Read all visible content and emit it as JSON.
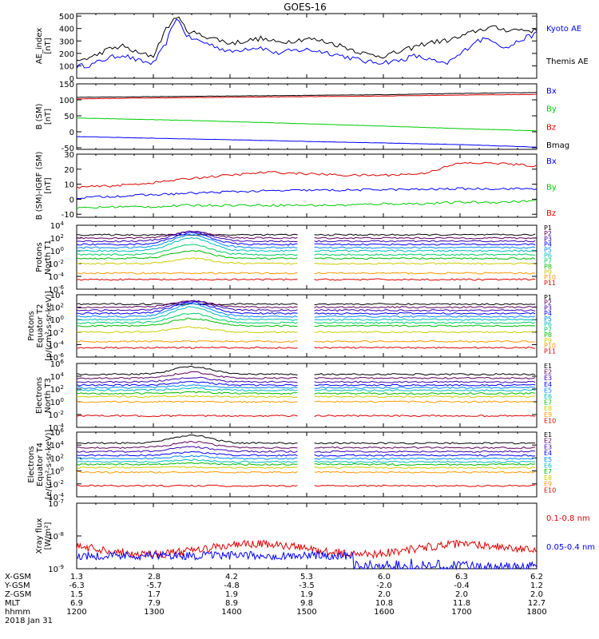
{
  "title": "GOES-16",
  "chart_data": [
    {
      "type": "line",
      "panel": "ae_index",
      "ylabel": [
        "AE_index",
        "[nT]"
      ],
      "yscale": "linear",
      "ylim": [
        0,
        520
      ],
      "yticks": [
        0,
        100,
        200,
        300,
        400,
        500
      ],
      "ytick_labels": [
        "0",
        "100",
        "200",
        "300",
        "400",
        "500"
      ],
      "x_hours": [
        12.0,
        12.2,
        12.4,
        12.6,
        12.8,
        13.0,
        13.15,
        13.3,
        13.45,
        13.6,
        13.8,
        14.0,
        14.2,
        14.4,
        14.6,
        14.8,
        15.0,
        15.2,
        15.4,
        15.6,
        15.8,
        16.0,
        16.2,
        16.4,
        16.6,
        16.8,
        17.0,
        17.2,
        17.4,
        17.6,
        17.8,
        18.0
      ],
      "series": [
        {
          "name": "Kyoto AE",
          "color": "#0000ff",
          "values": [
            95,
            110,
            160,
            190,
            140,
            120,
            260,
            490,
            330,
            300,
            260,
            210,
            240,
            250,
            200,
            220,
            230,
            215,
            190,
            160,
            130,
            130,
            140,
            180,
            150,
            110,
            190,
            300,
            320,
            240,
            310,
            360
          ]
        },
        {
          "name": "Themis AE",
          "color": "#000000",
          "values": [
            140,
            170,
            230,
            260,
            200,
            180,
            380,
            500,
            380,
            350,
            320,
            280,
            300,
            320,
            290,
            300,
            320,
            300,
            270,
            230,
            190,
            180,
            210,
            250,
            290,
            300,
            330,
            380,
            410,
            390,
            390,
            380
          ]
        }
      ]
    },
    {
      "type": "line",
      "panel": "b_sm",
      "ylabel": [
        "B (SM)",
        "[nT]"
      ],
      "yscale": "linear",
      "ylim": [
        -55,
        150
      ],
      "yticks": [
        -50,
        0,
        50,
        100,
        150
      ],
      "ytick_labels": [
        "-50",
        "0",
        "50",
        "100",
        "150"
      ],
      "x_hours": [
        12.0,
        13.0,
        14.0,
        15.0,
        16.0,
        17.0,
        18.0
      ],
      "series": [
        {
          "name": "Bx",
          "color": "#0000ff",
          "values": [
            -15,
            -20,
            -25,
            -30,
            -35,
            -40,
            -48
          ]
        },
        {
          "name": "By",
          "color": "#00cc00",
          "values": [
            43,
            38,
            32,
            25,
            18,
            10,
            3
          ]
        },
        {
          "name": "Bz",
          "color": "#dd0000",
          "values": [
            103,
            106,
            108,
            110,
            112,
            115,
            117
          ]
        },
        {
          "name": "Bmag",
          "color": "#000000",
          "values": [
            108,
            110,
            112,
            114,
            116,
            120,
            123
          ]
        }
      ]
    },
    {
      "type": "line",
      "panel": "b_minus_igrf",
      "ylabel": [
        "B (SM)-IGRF (SM)",
        "[nT]"
      ],
      "yscale": "linear",
      "ylim": [
        -12,
        30
      ],
      "yticks": [
        -10,
        0,
        10,
        20,
        30
      ],
      "ytick_labels": [
        "-10",
        "0",
        "10",
        "20",
        "30"
      ],
      "x_hours": [
        12.0,
        12.5,
        13.0,
        13.5,
        14.0,
        14.5,
        15.0,
        15.5,
        16.0,
        16.5,
        17.0,
        17.5,
        18.0
      ],
      "series": [
        {
          "name": "Bx",
          "color": "#0000ff",
          "values": [
            1,
            2,
            3,
            4,
            5,
            5.5,
            6,
            6,
            6.5,
            6.5,
            7,
            7,
            7
          ]
        },
        {
          "name": "By",
          "color": "#00cc00",
          "values": [
            -6,
            -5,
            -5,
            -4,
            -4,
            -4,
            -4,
            -4,
            -3,
            -3,
            -2,
            -2,
            -1
          ]
        },
        {
          "name": "Bz",
          "color": "#dd0000",
          "values": [
            8,
            9,
            11,
            14,
            16,
            18,
            17,
            16,
            16,
            17,
            24,
            24,
            22
          ]
        }
      ]
    },
    {
      "type": "line",
      "panel": "protons_t1",
      "ylabel": [
        "Protons",
        "North T1"
      ],
      "yscale": "log",
      "ylim_exp": [
        -6,
        4
      ],
      "ytick_exps": [
        -6,
        -4,
        -2,
        0,
        2,
        4
      ],
      "gap_hours": [
        14.9,
        15.1
      ],
      "channels": [
        "P1",
        "P2",
        "P3",
        "P4",
        "P5",
        "P6",
        "P7",
        "P8",
        "P9",
        "P10",
        "P11"
      ],
      "channel_colors": [
        "#000000",
        "#5a005a",
        "#3a00b0",
        "#0000ff",
        "#0088ff",
        "#00bbbb",
        "#00cc66",
        "#00bb00",
        "#cccc00",
        "#ff9900",
        "#dd0000"
      ],
      "base_log10": [
        2.5,
        2,
        1.5,
        1,
        0.5,
        0,
        -0.6,
        -1.2,
        -2,
        -3.5,
        -4.5
      ],
      "event_boost": [
        0,
        1,
        1.5,
        1.8,
        2,
        2,
        1.5,
        1.2,
        0.8,
        0,
        0
      ]
    },
    {
      "type": "line",
      "panel": "protons_t2",
      "ylabel": [
        "Protons",
        "Equator T2",
        "[p/(cm²-s-sr-keV)]"
      ],
      "yscale": "log",
      "ylim_exp": [
        -6,
        4
      ],
      "ytick_exps": [
        -6,
        -4,
        -2,
        0,
        2,
        4
      ],
      "gap_hours": [
        14.9,
        15.1
      ],
      "channels": [
        "P1",
        "P2",
        "P3",
        "P4",
        "P5",
        "P6",
        "P7",
        "P8",
        "P9",
        "P10",
        "P11"
      ],
      "channel_colors": [
        "#000000",
        "#5a005a",
        "#3a00b0",
        "#0000ff",
        "#0088ff",
        "#00bbbb",
        "#00cc66",
        "#00bb00",
        "#cccc00",
        "#ff9900",
        "#dd0000"
      ],
      "base_log10": [
        2.5,
        2,
        1.5,
        1,
        0.5,
        0,
        -0.5,
        -1,
        -2,
        -3.5,
        -4.5
      ],
      "event_boost": [
        0,
        1,
        1.5,
        1.8,
        2,
        2,
        1.5,
        1.2,
        0.8,
        0,
        0
      ]
    },
    {
      "type": "line",
      "panel": "electrons_t3",
      "ylabel": [
        "Electrons",
        "North T3"
      ],
      "yscale": "log",
      "ylim_exp": [
        -4,
        6
      ],
      "ytick_exps": [
        -4,
        -2,
        0,
        2,
        4,
        6
      ],
      "gap_hours": [
        14.9,
        15.1
      ],
      "channels": [
        "E1",
        "E2",
        "E3",
        "E4",
        "E5",
        "E6",
        "E7",
        "E8",
        "E9",
        "E10"
      ],
      "channel_colors": [
        "#000000",
        "#5a005a",
        "#3a00b0",
        "#0000ff",
        "#0088ff",
        "#00bbbb",
        "#00bb00",
        "#cccc00",
        "#ff9900",
        "#dd0000"
      ],
      "base_log10": [
        4.3,
        3.7,
        3.1,
        2.6,
        2.2,
        1.8,
        1.3,
        0.8,
        0,
        -2.2
      ],
      "event_boost": [
        1.2,
        0.9,
        0.7,
        0.5,
        0.4,
        0.3,
        0.2,
        0.1,
        0,
        0
      ]
    },
    {
      "type": "line",
      "panel": "electrons_t4",
      "ylabel": [
        "Electrons",
        "Equator T4",
        "[e/(cm²-s-sr-keV)]"
      ],
      "yscale": "log",
      "ylim_exp": [
        -4,
        6
      ],
      "ytick_exps": [
        -4,
        -2,
        0,
        2,
        4,
        6
      ],
      "gap_hours": [
        14.9,
        15.1
      ],
      "channels": [
        "E1",
        "E2",
        "E3",
        "E4",
        "E5",
        "E6",
        "E7",
        "E8",
        "E9",
        "E10"
      ],
      "channel_colors": [
        "#000000",
        "#5a005a",
        "#3a00b0",
        "#0000ff",
        "#0088ff",
        "#00bbbb",
        "#00bb00",
        "#cccc00",
        "#ff9900",
        "#dd0000"
      ],
      "base_log10": [
        4.3,
        3.6,
        3,
        2.4,
        1.9,
        1.4,
        1,
        0.5,
        -0.2,
        -2.3
      ],
      "event_boost": [
        1.2,
        0.9,
        0.7,
        0.5,
        0.4,
        0.3,
        0.2,
        0.1,
        0,
        0
      ]
    },
    {
      "type": "line",
      "panel": "xray_flux",
      "ylabel": [
        "Xray flux",
        "[W/m²]"
      ],
      "yscale": "log",
      "ylim_exp": [
        -9,
        -7
      ],
      "ytick_exps": [
        -9,
        -8,
        -7
      ],
      "series": [
        {
          "name": "0.1-0.8 nm",
          "color": "#dd0000",
          "base_log10": -8.4
        },
        {
          "name": "0.05-0.4 nm",
          "color": "#0000ff",
          "base_log10": -8.6
        }
      ]
    }
  ],
  "xaxis": {
    "x_hours": [
      12,
      13,
      14,
      15,
      16,
      17,
      18
    ],
    "rows": [
      {
        "label": "X-GSM",
        "values": [
          "1.3",
          "2.8",
          "4.2",
          "5.3",
          "6.0",
          "6.3",
          "6.2"
        ]
      },
      {
        "label": "Y-GSM",
        "values": [
          "-6.3",
          "-5.7",
          "-4.8",
          "-3.5",
          "-2.0",
          "-0.4",
          "1.2"
        ]
      },
      {
        "label": "Z-GSM",
        "values": [
          "1.5",
          "1.7",
          "1.9",
          "1.9",
          "2.0",
          "2.0",
          "2.0"
        ]
      },
      {
        "label": "MLT",
        "values": [
          "6.9",
          "7.9",
          "8.9",
          "9.8",
          "10.8",
          "11.8",
          "12.7"
        ]
      },
      {
        "label": "hhmm",
        "values": [
          "1200",
          "1300",
          "1400",
          "1500",
          "1600",
          "1700",
          "1800"
        ]
      }
    ],
    "date": "2018 Jan 31"
  }
}
